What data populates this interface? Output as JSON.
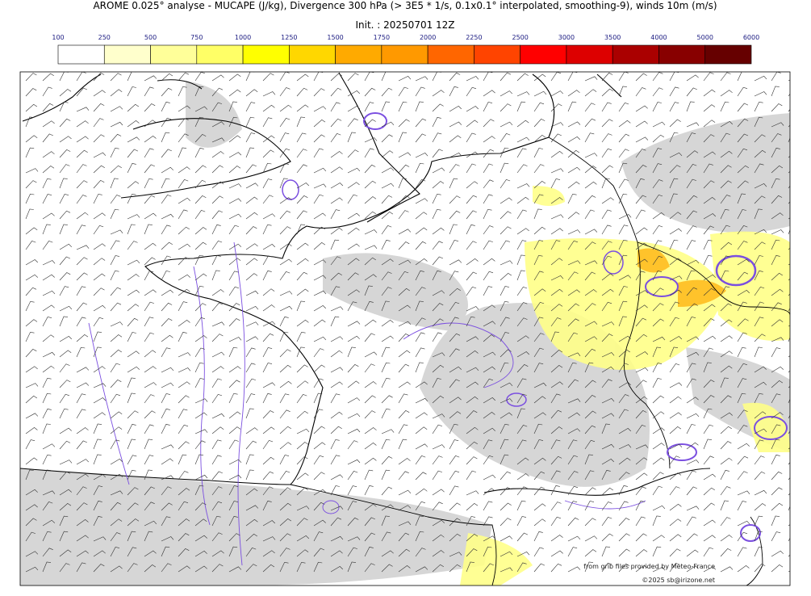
{
  "header": {
    "title": "AROME 0.025° analyse - MUCAPE (J/kg), Divergence 300 hPa (> 3E5 * 1/s, 0.1x0.1° interpolated, smoothing-9), winds 10m (m/s)",
    "init": "Init. : 20250701 12Z"
  },
  "colorbar": {
    "ticks": [
      100,
      250,
      500,
      750,
      1000,
      1250,
      1500,
      1750,
      2000,
      2250,
      2500,
      3000,
      3500,
      4000,
      5000,
      6000
    ],
    "colors": [
      "#ffffff",
      "#ffffcc",
      "#ffff99",
      "#ffff66",
      "#ffff00",
      "#ffd700",
      "#ffaa00",
      "#ff9900",
      "#ff6600",
      "#ff4400",
      "#ff0000",
      "#dd0000",
      "#aa0000",
      "#880000",
      "#660000"
    ]
  },
  "credits": {
    "source": "from grib files provided by Meteo-France",
    "copyright": "©2025 sb@irizone.net"
  }
}
